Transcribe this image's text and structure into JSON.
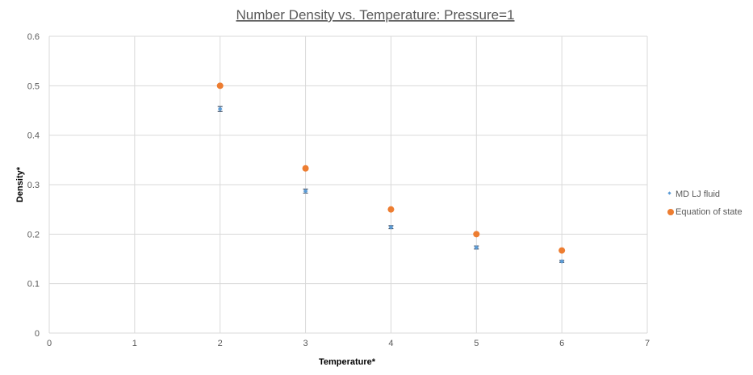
{
  "chart_data": {
    "type": "scatter",
    "title": "Number Density vs. Temperature: Pressure=1",
    "xlabel": "Temperature*",
    "ylabel": "Density*",
    "xlim": [
      0,
      7
    ],
    "ylim": [
      0,
      0.6
    ],
    "xticks": [
      "0",
      "1",
      "2",
      "3",
      "4",
      "5",
      "6",
      "7"
    ],
    "yticks": [
      "0",
      "0.1",
      "0.2",
      "0.3",
      "0.4",
      "0.5",
      "0.6"
    ],
    "grid": true,
    "legend_position": "right",
    "series": [
      {
        "name": "MD LJ fluid",
        "color": "#5b9bd5",
        "marker": "small-diamond-with-error-bars",
        "x": [
          2,
          3,
          4,
          5,
          6
        ],
        "y": [
          0.453,
          0.287,
          0.214,
          0.173,
          0.145
        ],
        "yerr": [
          0.005,
          0.004,
          0.003,
          0.003,
          0.002
        ]
      },
      {
        "name": "Equation of state",
        "color": "#ed7d31",
        "marker": "circle",
        "x": [
          2,
          3,
          4,
          5,
          6
        ],
        "y": [
          0.5,
          0.333,
          0.25,
          0.2,
          0.167
        ]
      }
    ]
  }
}
